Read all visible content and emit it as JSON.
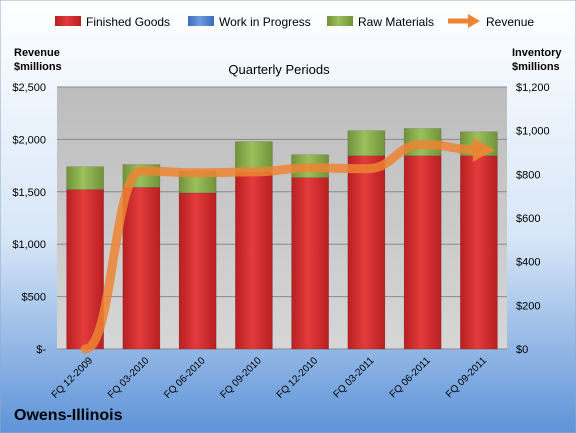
{
  "chart_data": {
    "type": "bar",
    "title": "Quarterly Periods",
    "company": "Owens-Illinois",
    "left_axis_title": "Revenue\n$millions",
    "right_axis_title": "Inventory\n$millions",
    "categories": [
      "FQ 12-2009",
      "FQ 03-2010",
      "FQ 06-2010",
      "FQ 09-2010",
      "FQ 12-2010",
      "FQ 03-2011",
      "FQ 06-2011",
      "FQ 09-2011"
    ],
    "left_axis": {
      "min": 0,
      "max": 2500,
      "ticks": [
        0,
        500,
        1000,
        1500,
        2000,
        2500
      ],
      "tick_labels": [
        "$-",
        "$500",
        "$1,000",
        "$1,500",
        "$2,000",
        "$2,500"
      ]
    },
    "right_axis": {
      "min": 0,
      "max": 1200,
      "ticks": [
        0,
        200,
        400,
        600,
        800,
        1000,
        1200
      ],
      "tick_labels": [
        "$0",
        "$200",
        "$400",
        "$600",
        "$800",
        "$1,000",
        "$1,200"
      ]
    },
    "series": [
      {
        "name": "Finished Goods",
        "axis": "right",
        "kind": "stacked-bar",
        "color": "#d2262a",
        "values": [
          730,
          740,
          715,
          810,
          785,
          885,
          885,
          885
        ]
      },
      {
        "name": "Work in Progress",
        "axis": "right",
        "kind": "stacked-bar",
        "color": "#4a7fd0",
        "values": [
          0,
          0,
          0,
          0,
          0,
          0,
          0,
          0
        ]
      },
      {
        "name": "Raw Materials",
        "axis": "right",
        "kind": "stacked-bar",
        "color": "#8db050",
        "values": [
          105,
          105,
          100,
          140,
          105,
          115,
          125,
          110
        ]
      },
      {
        "name": "Revenue",
        "axis": "left",
        "kind": "line",
        "color": "#ed8433",
        "values": [
          0,
          1700,
          1680,
          1690,
          1730,
          1720,
          1950,
          1900
        ]
      }
    ],
    "legend_position": "top",
    "grid": true,
    "plot_background": "#c8c8c8"
  }
}
